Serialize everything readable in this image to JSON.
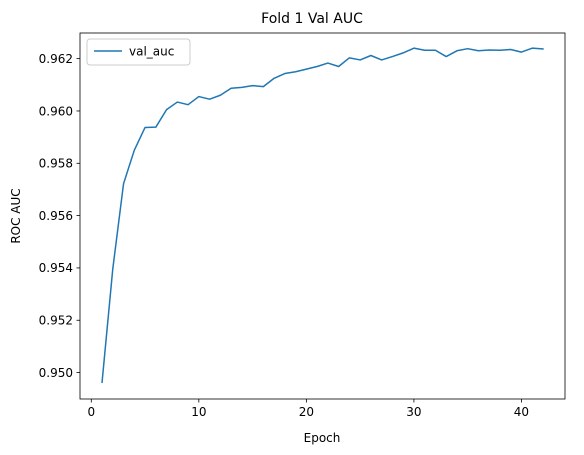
{
  "chart_data": {
    "type": "line",
    "title": "Fold 1 Val AUC",
    "xlabel": "Epoch",
    "ylabel": "ROC AUC",
    "xlim": [
      -1.05,
      44.05
    ],
    "ylim": [
      0.94899,
      0.96298
    ],
    "xticks": [
      0,
      10,
      20,
      30,
      40
    ],
    "xtick_labels": [
      "0",
      "10",
      "20",
      "30",
      "40"
    ],
    "yticks": [
      0.95,
      0.952,
      0.954,
      0.956,
      0.958,
      0.96,
      0.962
    ],
    "ytick_labels": [
      "0.950",
      "0.952",
      "0.954",
      "0.956",
      "0.958",
      "0.960",
      "0.962"
    ],
    "grid": false,
    "legend_position": "top-left",
    "series": [
      {
        "name": "val_auc",
        "color": "#1f77b4",
        "x": [
          1,
          2,
          3,
          4,
          5,
          6,
          7,
          8,
          9,
          10,
          11,
          12,
          13,
          14,
          15,
          16,
          17,
          18,
          19,
          20,
          21,
          22,
          23,
          24,
          25,
          26,
          27,
          28,
          29,
          30,
          31,
          32,
          33,
          34,
          35,
          36,
          37,
          38,
          39,
          40,
          41,
          42
        ],
        "y": [
          0.94963,
          0.95397,
          0.95722,
          0.9585,
          0.95937,
          0.95938,
          0.96005,
          0.96034,
          0.96024,
          0.96055,
          0.96045,
          0.9606,
          0.96087,
          0.9609,
          0.96097,
          0.96093,
          0.96125,
          0.96143,
          0.9615,
          0.9616,
          0.9617,
          0.96183,
          0.9617,
          0.96203,
          0.96195,
          0.96212,
          0.96195,
          0.96208,
          0.96222,
          0.9624,
          0.96232,
          0.96232,
          0.96208,
          0.9623,
          0.96238,
          0.9623,
          0.96233,
          0.96232,
          0.96235,
          0.96225,
          0.9624,
          0.96237
        ]
      }
    ]
  }
}
